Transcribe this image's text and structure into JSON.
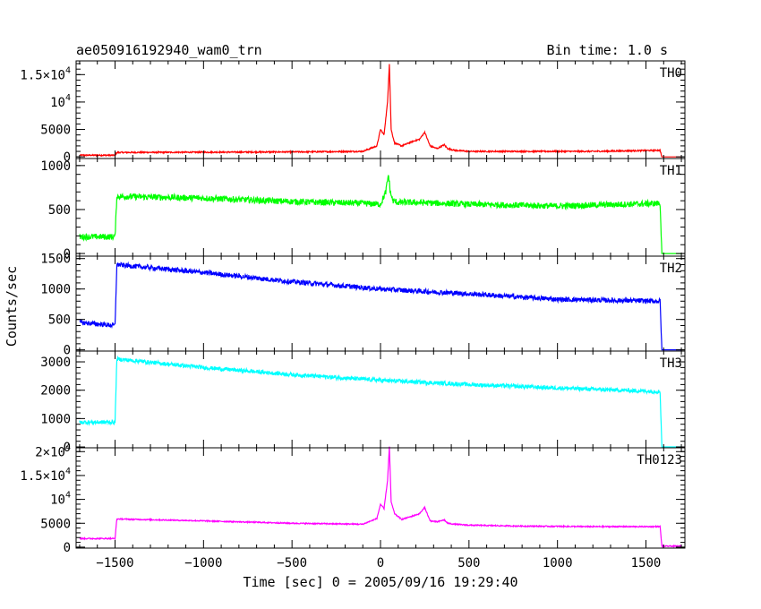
{
  "chart_data": {
    "type": "line",
    "title": "ae050916192940_wam0_trn",
    "bin_time_label": "Bin time: 1.0 s",
    "xlabel": "Time [sec] 0 = 2005/09/16 19:29:40",
    "ylabel": "Counts/sec",
    "xlim": [
      -1720,
      1720
    ],
    "x_ticks": [
      -1500,
      -1000,
      -500,
      0,
      500,
      1000,
      1500
    ],
    "x_tick_labels": [
      "−1500",
      "−1000",
      "−500",
      "0",
      "500",
      "1000",
      "1500"
    ],
    "grid": false,
    "legend": "none; channel name printed at top-right inside each panel",
    "panels": [
      {
        "name": "TH0",
        "color": "#ff0000",
        "ylim": [
          -300,
          17500
        ],
        "y_ticks": [
          0,
          5000,
          10000,
          15000
        ],
        "y_tick_labels": [
          {
            "mant": "0",
            "exp": ""
          },
          {
            "mant": "5000",
            "exp": ""
          },
          {
            "mant": "10",
            "exp": "4"
          },
          {
            "mant": "1.5×10",
            "exp": "4"
          }
        ],
        "x": [
          -1700,
          -1500,
          -1490,
          -1000,
          -500,
          -100,
          -20,
          0,
          20,
          40,
          50,
          60,
          80,
          120,
          180,
          220,
          250,
          280,
          320,
          360,
          380,
          420,
          500,
          800,
          1200,
          1580,
          1590,
          1700
        ],
        "y": [
          300,
          300,
          800,
          850,
          900,
          1000,
          2000,
          5000,
          4000,
          10000,
          17000,
          5000,
          2500,
          2000,
          2800,
          3200,
          4500,
          2000,
          1500,
          2200,
          1500,
          1200,
          1000,
          1000,
          1000,
          1200,
          0,
          0
        ],
        "noise": 120
      },
      {
        "name": "TH1",
        "color": "#00ff00",
        "ylim": [
          -30,
          1080
        ],
        "y_ticks": [
          0,
          500,
          1000
        ],
        "y_tick_labels": [
          {
            "mant": "0",
            "exp": ""
          },
          {
            "mant": "500",
            "exp": ""
          },
          {
            "mant": "1000",
            "exp": ""
          }
        ],
        "x": [
          -1700,
          -1500,
          -1490,
          -1000,
          -500,
          -100,
          0,
          30,
          45,
          55,
          70,
          100,
          200,
          500,
          1000,
          1580,
          1590,
          1700
        ],
        "y": [
          190,
          190,
          650,
          630,
          590,
          570,
          560,
          700,
          900,
          700,
          600,
          580,
          580,
          560,
          540,
          570,
          0,
          0
        ],
        "noise": 35
      },
      {
        "name": "TH2",
        "color": "#0000ff",
        "ylim": [
          -20,
          1540
        ],
        "y_ticks": [
          0,
          500,
          1000,
          1500
        ],
        "y_tick_labels": [
          {
            "mant": "0",
            "exp": ""
          },
          {
            "mant": "500",
            "exp": ""
          },
          {
            "mant": "1000",
            "exp": ""
          },
          {
            "mant": "1500",
            "exp": ""
          }
        ],
        "x": [
          -1700,
          -1500,
          -1490,
          -1000,
          -500,
          0,
          500,
          1000,
          1580,
          1590,
          1700
        ],
        "y": [
          450,
          400,
          1400,
          1270,
          1120,
          1000,
          920,
          830,
          800,
          0,
          0
        ],
        "noise": 40
      },
      {
        "name": "TH3",
        "color": "#00ffff",
        "ylim": [
          -30,
          3380
        ],
        "y_ticks": [
          0,
          1000,
          2000,
          3000
        ],
        "y_tick_labels": [
          {
            "mant": "0",
            "exp": ""
          },
          {
            "mant": "1000",
            "exp": ""
          },
          {
            "mant": "2000",
            "exp": ""
          },
          {
            "mant": "3000",
            "exp": ""
          }
        ],
        "x": [
          -1700,
          -1500,
          -1490,
          -1000,
          -500,
          0,
          500,
          1000,
          1580,
          1590,
          1700
        ],
        "y": [
          870,
          870,
          3100,
          2800,
          2550,
          2350,
          2200,
          2080,
          1950,
          0,
          0
        ],
        "noise": 70
      },
      {
        "name": "TH0123",
        "color": "#ff00ff",
        "ylim": [
          -200,
          20800
        ],
        "y_ticks": [
          0,
          5000,
          10000,
          15000,
          20000
        ],
        "y_tick_labels": [
          {
            "mant": "0",
            "exp": ""
          },
          {
            "mant": "5000",
            "exp": ""
          },
          {
            "mant": "10",
            "exp": "4"
          },
          {
            "mant": "1.5×10",
            "exp": "4"
          },
          {
            "mant": "2×10",
            "exp": "4"
          }
        ],
        "x": [
          -1700,
          -1500,
          -1490,
          -1000,
          -500,
          -100,
          -20,
          0,
          20,
          40,
          50,
          60,
          80,
          120,
          180,
          220,
          250,
          280,
          320,
          360,
          380,
          420,
          500,
          800,
          1200,
          1580,
          1590,
          1700
        ],
        "y": [
          1800,
          1800,
          5900,
          5500,
          5000,
          4800,
          6000,
          9000,
          8000,
          14000,
          21000,
          9500,
          7000,
          5800,
          6500,
          7000,
          8300,
          5500,
          5300,
          5700,
          5000,
          4800,
          4600,
          4400,
          4300,
          4300,
          200,
          200
        ],
        "noise": 120
      }
    ]
  }
}
